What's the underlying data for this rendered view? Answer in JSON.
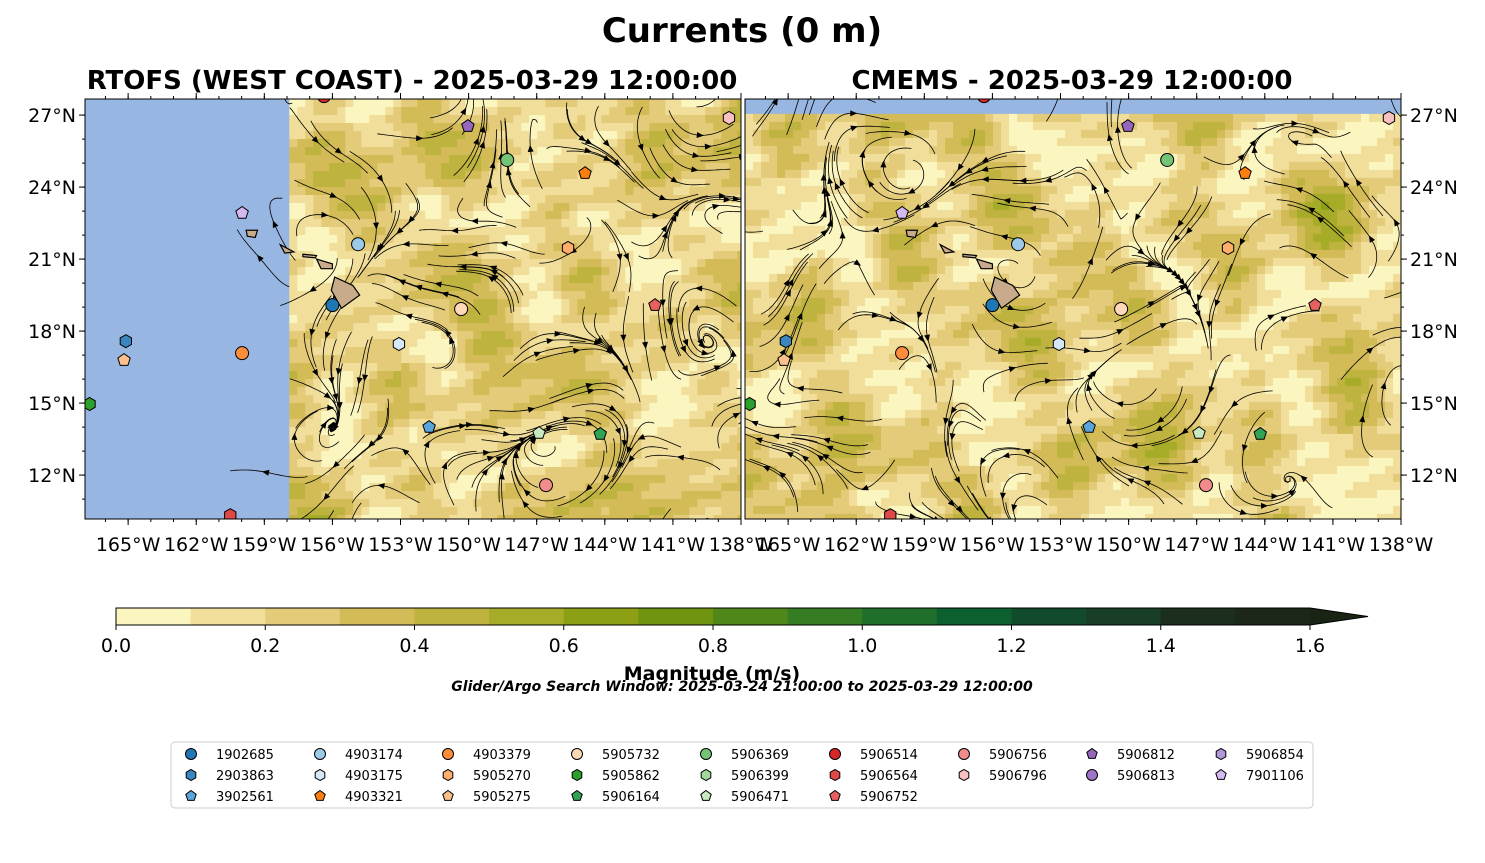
{
  "suptitle": "Currents (0 m)",
  "panels": [
    {
      "title": "RTOFS (WEST COAST) - 2025-03-29 12:00:00",
      "model": "RTOFS",
      "ocean_mask_west_of_lon": -157.9
    },
    {
      "title": "CMEMS - 2025-03-29 12:00:00",
      "model": "CMEMS",
      "ocean_mask_north_of_lat": 27.05
    }
  ],
  "chart_data": {
    "type": "heatmap",
    "description_type": "map with filled contours of current magnitude and streamlines",
    "extent": {
      "lon": [
        -166.9,
        -138.0
      ],
      "lat": [
        10.17,
        27.67
      ]
    },
    "x_ticks": [
      "165°W",
      "162°W",
      "159°W",
      "156°W",
      "153°W",
      "150°W",
      "147°W",
      "144°W",
      "141°W",
      "138°W"
    ],
    "x_tick_values": [
      -165,
      -162,
      -159,
      -156,
      -153,
      -150,
      -147,
      -144,
      -141,
      -138
    ],
    "y_ticks": [
      "27°N",
      "24°N",
      "21°N",
      "18°N",
      "15°N",
      "12°N"
    ],
    "y_tick_values": [
      27,
      24,
      21,
      18,
      15,
      12
    ],
    "colorbar": {
      "label": "Magnitude (m/s)",
      "range": [
        0,
        1.6
      ],
      "extend": "max",
      "tick_labels": [
        "0.0",
        "0.2",
        "0.4",
        "0.6",
        "0.8",
        "1.0",
        "1.2",
        "1.4",
        "1.6"
      ],
      "colors": [
        "#fbf5c0",
        "#f0de9a",
        "#e3cb79",
        "#d3bc57",
        "#beb33e",
        "#a7ac28",
        "#8d9f15",
        "#709410",
        "#508719",
        "#367c23",
        "#1f6e2c",
        "#0c6030",
        "#124b2c",
        "#183f26",
        "#1b2f1c",
        "#1c2717"
      ],
      "extend_color": "#1a2415"
    },
    "floats": [
      {
        "id": "1902685",
        "lon": -156.0,
        "lat": 19.08
      },
      {
        "id": "2903863",
        "lon": -165.1,
        "lat": 17.58
      },
      {
        "id": "3902561",
        "lon": -151.74,
        "lat": 14.0
      },
      {
        "id": "4903174",
        "lon": -154.87,
        "lat": 21.62
      },
      {
        "id": "4903175",
        "lon": -153.07,
        "lat": 17.46
      },
      {
        "id": "4903379",
        "lon": -159.98,
        "lat": 17.08
      },
      {
        "id": "4903321",
        "lon": -144.87,
        "lat": 24.58
      },
      {
        "id": "5905270",
        "lon": -145.62,
        "lat": 21.46
      },
      {
        "id": "5905275",
        "lon": -165.18,
        "lat": 16.79
      },
      {
        "id": "5905732",
        "lon": -150.33,
        "lat": 18.92
      },
      {
        "id": "5905862",
        "lon": -166.7,
        "lat": 14.96
      },
      {
        "id": "5906164",
        "lon": -144.2,
        "lat": 13.71
      },
      {
        "id": "5906369",
        "lon": -148.3,
        "lat": 25.13
      },
      {
        "id": "5906471",
        "lon": -146.9,
        "lat": 13.75
      },
      {
        "id": "5906514",
        "lon": -156.37,
        "lat": 27.79
      },
      {
        "id": "5906564",
        "lon": -160.5,
        "lat": 10.33
      },
      {
        "id": "5906752",
        "lon": -141.79,
        "lat": 19.08
      },
      {
        "id": "5906756",
        "lon": -146.59,
        "lat": 11.58
      },
      {
        "id": "5906796",
        "lon": -138.53,
        "lat": 26.88
      },
      {
        "id": "5906812",
        "lon": -150.03,
        "lat": 26.54
      },
      {
        "id": "7901106",
        "lon": -159.98,
        "lat": 22.92
      }
    ]
  },
  "search_window": "Glider/Argo Search Window: 2025-03-24 21:00:00 to 2025-03-29 12:00:00",
  "legend": [
    {
      "label": "1902685",
      "color": "#1f77b4",
      "marker": "circle"
    },
    {
      "label": "2903863",
      "color": "#3a87c0",
      "marker": "hexagon"
    },
    {
      "label": "3902561",
      "color": "#5aa5dc",
      "marker": "pentagon"
    },
    {
      "label": "4903174",
      "color": "#9ecae9",
      "marker": "circle"
    },
    {
      "label": "4903175",
      "color": "#d4e8f8",
      "marker": "hexagon"
    },
    {
      "label": "4903321",
      "color": "#ff7f0e",
      "marker": "pentagon"
    },
    {
      "label": "4903379",
      "color": "#fd8d3c",
      "marker": "circle"
    },
    {
      "label": "5905270",
      "color": "#fdae6b",
      "marker": "hexagon"
    },
    {
      "label": "5905275",
      "color": "#fdc08c",
      "marker": "pentagon"
    },
    {
      "label": "5905732",
      "color": "#fdd9b8",
      "marker": "circle"
    },
    {
      "label": "5905862",
      "color": "#2ca02c",
      "marker": "hexagon"
    },
    {
      "label": "5906164",
      "color": "#31a354",
      "marker": "pentagon"
    },
    {
      "label": "5906369",
      "color": "#74c476",
      "marker": "circle"
    },
    {
      "label": "5906399",
      "color": "#a1d99b",
      "marker": "hexagon"
    },
    {
      "label": "5906471",
      "color": "#c7e9c0",
      "marker": "pentagon"
    },
    {
      "label": "5906514",
      "color": "#d62728",
      "marker": "circle"
    },
    {
      "label": "5906564",
      "color": "#e04848",
      "marker": "hexagon"
    },
    {
      "label": "5906752",
      "color": "#e66060",
      "marker": "pentagon"
    },
    {
      "label": "5906756",
      "color": "#f08c8c",
      "marker": "circle"
    },
    {
      "label": "5906796",
      "color": "#f8c0c0",
      "marker": "hexagon"
    },
    {
      "label": "5906812",
      "color": "#9467bd",
      "marker": "pentagon"
    },
    {
      "label": "5906813",
      "color": "#9e74c8",
      "marker": "circle"
    },
    {
      "label": "5906854",
      "color": "#b196d8",
      "marker": "hexagon"
    },
    {
      "label": "7901106",
      "color": "#d4b8f0",
      "marker": "pentagon"
    }
  ],
  "legend_columns": [
    [
      0,
      1,
      2
    ],
    [
      3,
      4,
      5
    ],
    [
      6,
      7,
      8
    ],
    [
      9,
      10,
      11
    ],
    [
      12,
      13,
      14
    ],
    [
      15,
      16,
      17
    ],
    [
      18,
      19
    ],
    [
      20,
      21
    ],
    [
      22,
      23
    ]
  ]
}
